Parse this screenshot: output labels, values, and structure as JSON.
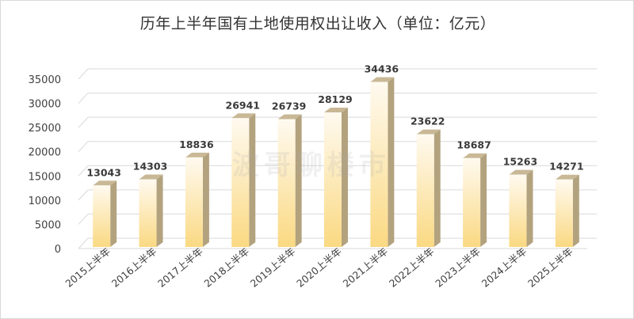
{
  "chart_data": {
    "type": "bar",
    "title": "历年上半年国有土地使用权出让收入（单位：亿元）",
    "categories": [
      "2015上半年",
      "2016上半年",
      "2017上半年",
      "2018上半年",
      "2019上半年",
      "2020上半年",
      "2021上半年",
      "2022上半年",
      "2023上半年",
      "2024上半年",
      "2025上半年"
    ],
    "values": [
      13043,
      14303,
      18836,
      26941,
      26739,
      28129,
      34436,
      23622,
      18687,
      15263,
      14271
    ],
    "yticks": [
      0,
      5000,
      10000,
      15000,
      20000,
      25000,
      30000,
      35000
    ],
    "ylim": [
      0,
      35000
    ],
    "grid": true,
    "legend": "none",
    "bar_color_top": "#fffaf0",
    "bar_color_bottom": "#fad982",
    "bar_side_color": "#b3a27e"
  },
  "watermark": "波哥聊楼市"
}
